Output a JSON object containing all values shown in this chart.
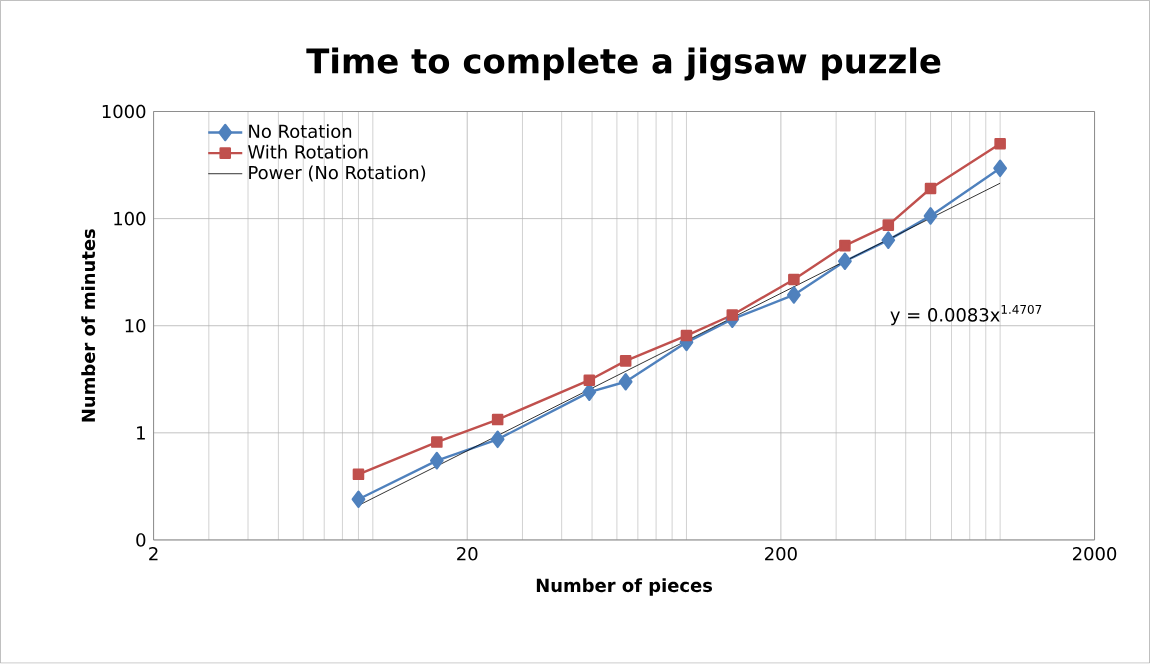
{
  "chart_data": {
    "type": "line",
    "title": "Time to complete a jigsaw puzzle",
    "xlabel": "Number of pieces",
    "ylabel": "Number of minutes",
    "log": "xy",
    "grid": true,
    "legend": "top left",
    "xlim": [
      2,
      2000
    ],
    "xticks": [
      2,
      20,
      200,
      2000
    ],
    "ylim": [
      0.1,
      1000
    ],
    "yticks": [
      {
        "value": 0.1,
        "label": "0"
      },
      1,
      10,
      100,
      1000
    ],
    "series": [
      {
        "name": "No Rotation",
        "color": "#4f81bd",
        "marker": "diamond",
        "x": [
          9,
          16,
          25,
          49,
          64,
          100,
          140,
          220,
          320,
          440,
          600,
          1000
        ],
        "values": [
          0.24,
          0.55,
          0.87,
          2.4,
          3.0,
          7.0,
          11.5,
          19.4,
          40,
          63,
          106,
          295
        ]
      },
      {
        "name": "With Rotation",
        "color": "#c0504d",
        "marker": "square",
        "x": [
          9,
          16,
          25,
          49,
          64,
          100,
          140,
          220,
          320,
          440,
          600,
          1000
        ],
        "values": [
          0.41,
          0.82,
          1.33,
          3.1,
          4.7,
          8.1,
          12.6,
          27,
          56,
          87,
          191,
          500
        ]
      },
      {
        "name": "Power (No Rotation)",
        "color": "#000000",
        "marker": "none",
        "x": [
          9,
          1000
        ],
        "values": [
          0.21,
          214
        ]
      }
    ],
    "annotations": [
      "y = 0.0083x$^{1.4707}$"
    ]
  }
}
